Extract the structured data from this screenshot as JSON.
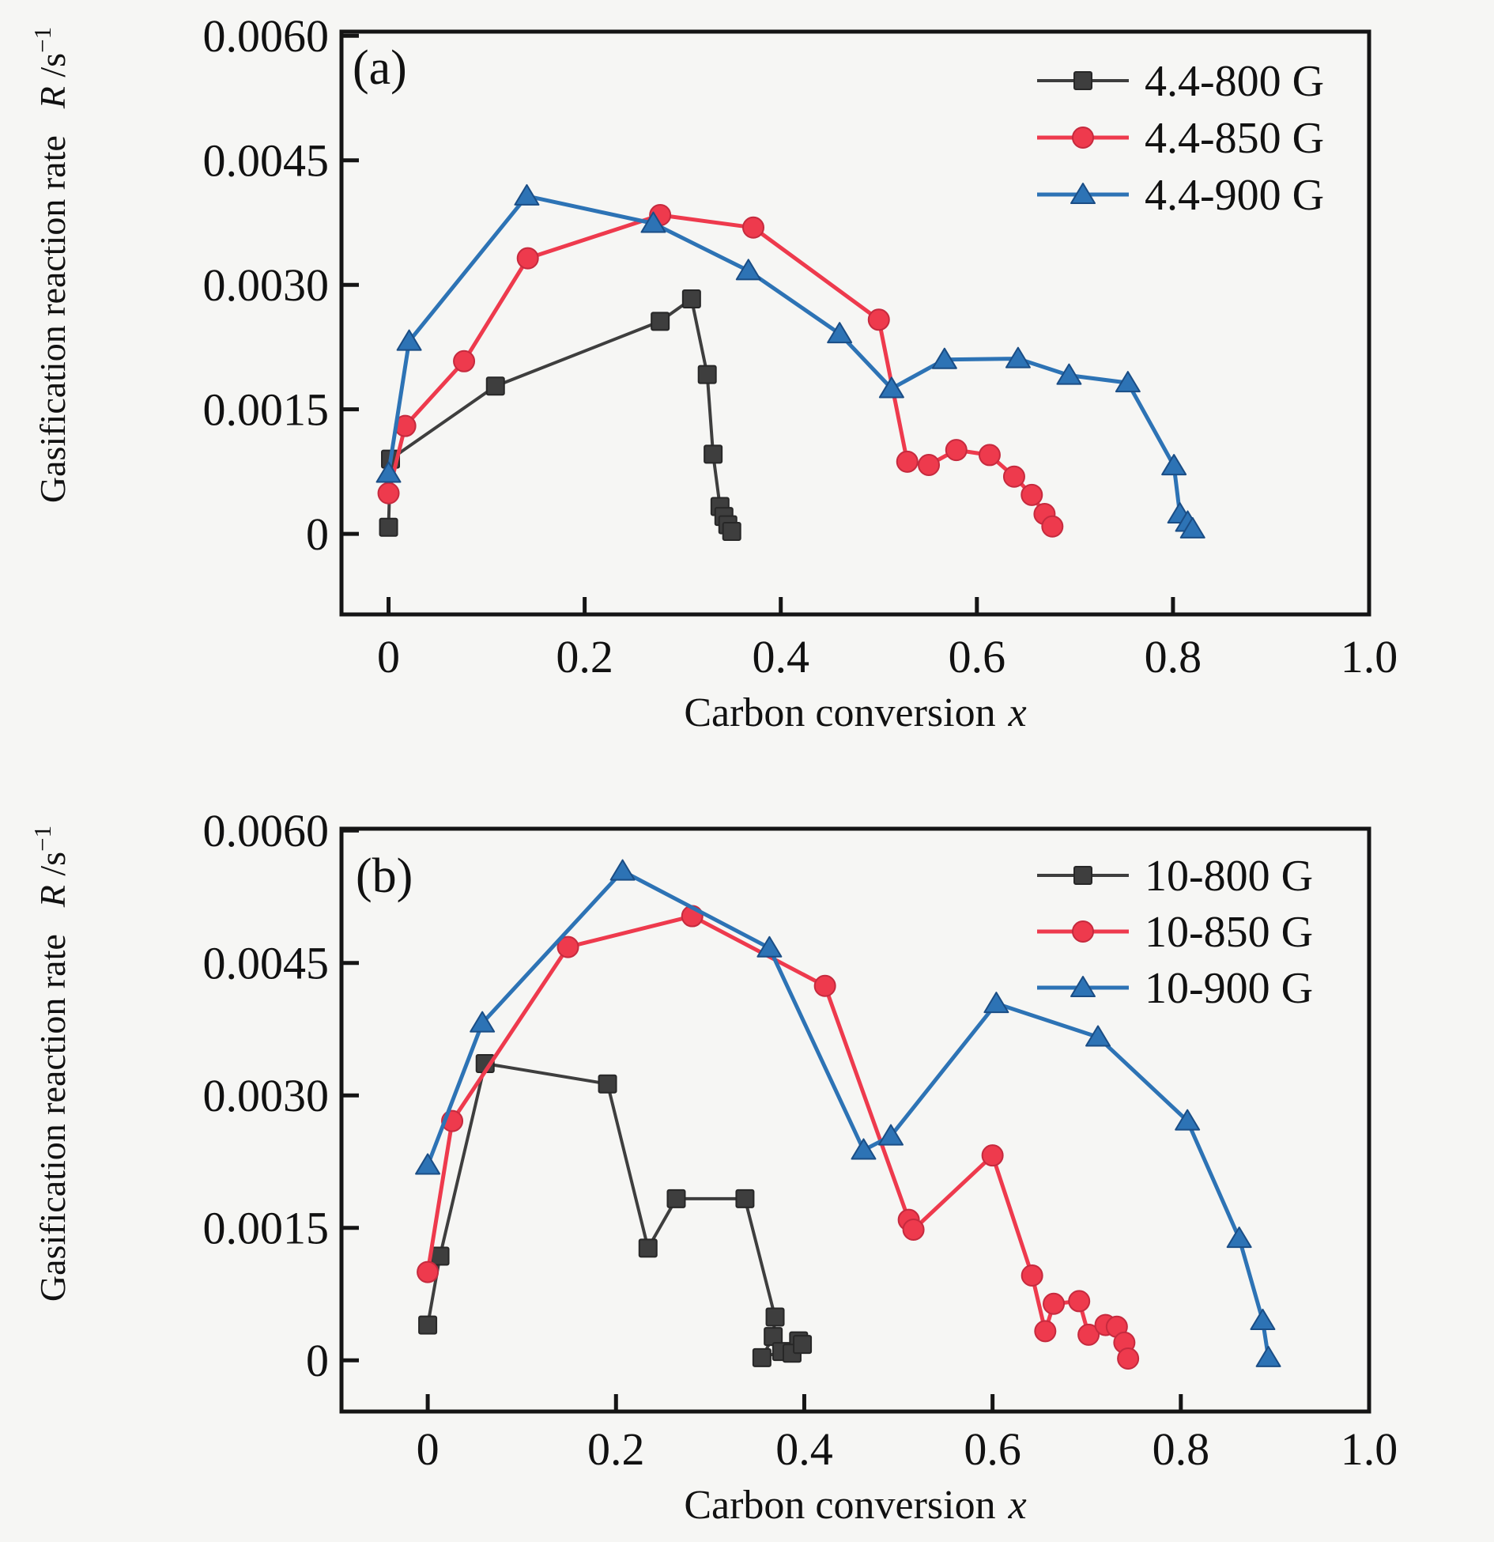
{
  "figure": {
    "background": "#f6f6f4",
    "axis_color": "#151515",
    "text_color": "#111111"
  },
  "chart_data": [
    {
      "type": "line",
      "panel_label": "(a)",
      "xlabel_parts": [
        {
          "text": "Carbon conversion"
        },
        {
          "text": "x",
          "italic": true,
          "dx": 16
        }
      ],
      "ylabel_parts": [
        {
          "text": "Gasification reaction rate"
        },
        {
          "text": "R",
          "italic": true,
          "dx": 34
        },
        {
          "text": " /s"
        },
        {
          "text": "−1",
          "sup": true
        }
      ],
      "xlim": [
        -0.048,
        1.0
      ],
      "ylim": [
        -0.00097,
        0.00605
      ],
      "grid": false,
      "legend_position": "top-right",
      "x_ticks": [
        {
          "v": 0,
          "label": "0"
        },
        {
          "v": 0.2,
          "label": "0.2"
        },
        {
          "v": 0.4,
          "label": "0.4"
        },
        {
          "v": 0.6,
          "label": "0.6"
        },
        {
          "v": 0.8,
          "label": "0.8"
        },
        {
          "v": 1.0,
          "label": "1.0"
        }
      ],
      "y_ticks": [
        {
          "v": 0,
          "label": "0"
        },
        {
          "v": 0.0015,
          "label": "0.0015"
        },
        {
          "v": 0.003,
          "label": "0.0030"
        },
        {
          "v": 0.0045,
          "label": "0.0045"
        },
        {
          "v": 0.006,
          "label": "0.0060"
        }
      ],
      "series": [
        {
          "name": "4.4-800 G",
          "marker": "square",
          "color": "#3e3e3e",
          "edge": "#272727",
          "line_width": 4,
          "points": [
            [
              0.0,
              8e-05
            ],
            [
              0.002,
              0.0009
            ],
            [
              0.109,
              0.00178
            ],
            [
              0.277,
              0.00256
            ],
            [
              0.309,
              0.00283
            ],
            [
              0.325,
              0.00192
            ],
            [
              0.331,
              0.00096
            ],
            [
              0.338,
              0.00033
            ],
            [
              0.342,
              0.00021
            ],
            [
              0.346,
              0.00011
            ],
            [
              0.35,
              3e-05
            ]
          ]
        },
        {
          "name": "4.4-850 G",
          "marker": "circle",
          "color": "#ee3a4d",
          "edge": "#c62a3e",
          "line_width": 5,
          "points": [
            [
              0.0,
              0.00049
            ],
            [
              0.017,
              0.0013
            ],
            [
              0.077,
              0.00208
            ],
            [
              0.142,
              0.00332
            ],
            [
              0.277,
              0.00384
            ],
            [
              0.372,
              0.00369
            ],
            [
              0.5,
              0.00258
            ],
            [
              0.529,
              0.00087
            ],
            [
              0.551,
              0.00083
            ],
            [
              0.579,
              0.00101
            ],
            [
              0.613,
              0.00095
            ],
            [
              0.638,
              0.00069
            ],
            [
              0.656,
              0.00047
            ],
            [
              0.669,
              0.00024
            ],
            [
              0.677,
              9e-05
            ]
          ]
        },
        {
          "name": "4.4-900 G",
          "marker": "triangle",
          "color": "#2d73b5",
          "edge": "#1a4d85",
          "line_width": 5,
          "points": [
            [
              0.0,
              0.00073
            ],
            [
              0.021,
              0.00232
            ],
            [
              0.141,
              0.00407
            ],
            [
              0.27,
              0.00374
            ],
            [
              0.367,
              0.00317
            ],
            [
              0.46,
              0.00241
            ],
            [
              0.513,
              0.00175
            ],
            [
              0.567,
              0.0021
            ],
            [
              0.642,
              0.00211
            ],
            [
              0.694,
              0.00191
            ],
            [
              0.754,
              0.00182
            ],
            [
              0.801,
              0.00082
            ],
            [
              0.807,
              0.00024
            ],
            [
              0.815,
              0.00014
            ],
            [
              0.82,
              6e-05
            ]
          ]
        }
      ]
    },
    {
      "type": "line",
      "panel_label": "(b)",
      "xlabel_parts": [
        {
          "text": "Carbon conversion"
        },
        {
          "text": "x",
          "italic": true,
          "dx": 16
        }
      ],
      "ylabel_parts": [
        {
          "text": "Gasification reaction rate"
        },
        {
          "text": "R",
          "italic": true,
          "dx": 34
        },
        {
          "text": " /s"
        },
        {
          "text": "−1",
          "sup": true
        }
      ],
      "xlim": [
        -0.0916,
        1.0
      ],
      "ylim": [
        -0.00058,
        0.00602
      ],
      "grid": false,
      "legend_position": "top-right",
      "x_ticks": [
        {
          "v": 0,
          "label": "0"
        },
        {
          "v": 0.2,
          "label": "0.2"
        },
        {
          "v": 0.4,
          "label": "0.4"
        },
        {
          "v": 0.6,
          "label": "0.6"
        },
        {
          "v": 0.8,
          "label": "0.8"
        },
        {
          "v": 1.0,
          "label": "1.0"
        }
      ],
      "y_ticks": [
        {
          "v": 0,
          "label": "0"
        },
        {
          "v": 0.0015,
          "label": "0.0015"
        },
        {
          "v": 0.003,
          "label": "0.0030"
        },
        {
          "v": 0.0045,
          "label": "0.0045"
        },
        {
          "v": 0.006,
          "label": "0.0060"
        }
      ],
      "series": [
        {
          "name": "10-800 G",
          "marker": "square",
          "color": "#3e3e3e",
          "edge": "#272727",
          "line_width": 4,
          "points": [
            [
              0.0,
              0.0004
            ],
            [
              0.013,
              0.00118
            ],
            [
              0.061,
              0.00336
            ],
            [
              0.191,
              0.00313
            ],
            [
              0.234,
              0.00127
            ],
            [
              0.264,
              0.00183
            ],
            [
              0.337,
              0.00183
            ],
            [
              0.369,
              0.00049
            ],
            [
              0.367,
              0.00027
            ],
            [
              0.355,
              3e-05
            ],
            [
              0.376,
              0.0001
            ],
            [
              0.394,
              0.00022
            ],
            [
              0.387,
              8e-05
            ],
            [
              0.398,
              0.00018
            ]
          ]
        },
        {
          "name": "10-850 G",
          "marker": "circle",
          "color": "#ee3a4d",
          "edge": "#c62a3e",
          "line_width": 5,
          "points": [
            [
              0.0,
              0.001
            ],
            [
              0.026,
              0.00271
            ],
            [
              0.149,
              0.00468
            ],
            [
              0.281,
              0.00503
            ],
            [
              0.422,
              0.00424
            ],
            [
              0.511,
              0.00159
            ],
            [
              0.516,
              0.00148
            ],
            [
              0.6,
              0.00232
            ],
            [
              0.642,
              0.00096
            ],
            [
              0.656,
              0.00033
            ],
            [
              0.665,
              0.00064
            ],
            [
              0.692,
              0.00067
            ],
            [
              0.702,
              0.00029
            ],
            [
              0.72,
              0.0004
            ],
            [
              0.732,
              0.00038
            ],
            [
              0.74,
              0.0002
            ],
            [
              0.744,
              2e-05
            ]
          ]
        },
        {
          "name": "10-900 G",
          "marker": "triangle",
          "color": "#2d73b5",
          "edge": "#1a4d85",
          "line_width": 5,
          "points": [
            [
              0.0,
              0.00221
            ],
            [
              0.058,
              0.00382
            ],
            [
              0.207,
              0.00554
            ],
            [
              0.363,
              0.00467
            ],
            [
              0.463,
              0.00238
            ],
            [
              0.492,
              0.00254
            ],
            [
              0.604,
              0.00404
            ],
            [
              0.712,
              0.00366
            ],
            [
              0.807,
              0.00271
            ],
            [
              0.862,
              0.00138
            ],
            [
              0.887,
              0.00045
            ],
            [
              0.893,
              3e-05
            ]
          ]
        }
      ]
    }
  ]
}
